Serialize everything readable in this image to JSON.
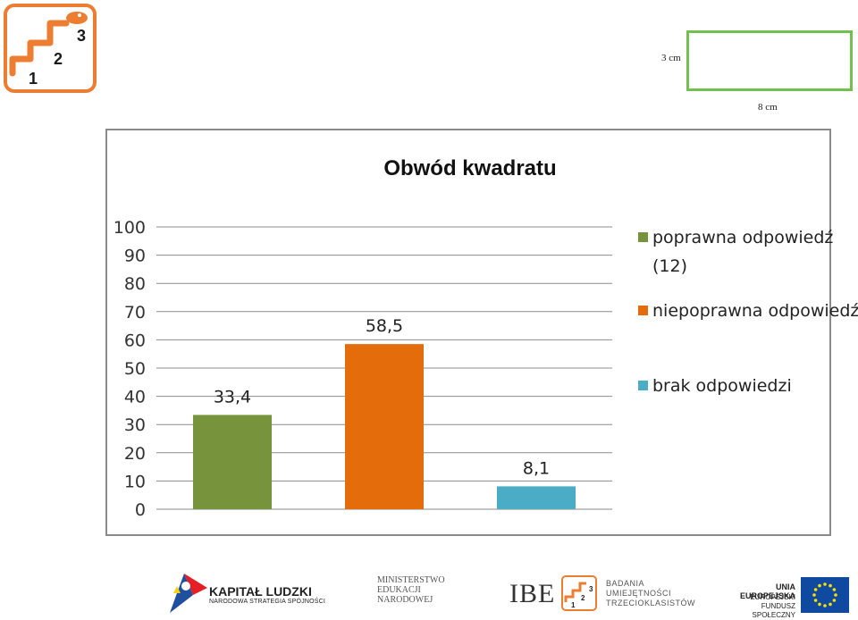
{
  "logo": {
    "numbers": [
      "1",
      "2",
      "3"
    ],
    "icon": "snake-stairs-logo",
    "color": "#ed7d31"
  },
  "figure": {
    "height_label": "3 cm",
    "width_label": "8 cm",
    "border_color": "#72c04f"
  },
  "chart_data": {
    "type": "bar",
    "title": "Obwód kwadratu",
    "categories": [
      "poprawna odpowiedź (12)",
      "niepoprawna odpowiedź",
      "brak odpowiedzi"
    ],
    "values": [
      33.4,
      58.5,
      8.1
    ],
    "value_labels": [
      "33,4",
      "58,5",
      "8,1"
    ],
    "colors": [
      "#77933c",
      "#e46c0a",
      "#4bacc6"
    ],
    "legend": [
      {
        "lines": [
          "poprawna odpowiedź",
          "(12)"
        ]
      },
      {
        "lines": [
          "niepoprawna odpowiedź"
        ]
      },
      {
        "lines": [
          "brak odpowiedzi"
        ]
      }
    ],
    "ylim": [
      0,
      100
    ],
    "yticks": [
      0,
      10,
      20,
      30,
      40,
      50,
      60,
      70,
      80,
      90,
      100
    ],
    "grid": true,
    "legend_position": "right"
  },
  "footer": {
    "kapital": {
      "title": "KAPITAŁ LUDZKI",
      "subtitle": "NARODOWA STRATEGIA SPÓJNOŚCI"
    },
    "ministerstwo": {
      "lines": [
        "MINISTERSTWO",
        "EDUKACJI",
        "NARODOWEJ"
      ]
    },
    "ibe": {
      "name": "IBE",
      "lines": [
        "BADANIA",
        "UMIEJĘTNOŚCI",
        "TRZECIOKLASISTÓW"
      ]
    },
    "ue": {
      "title": "UNIA EUROPEJSKA",
      "lines": [
        "EUROPEJSKI",
        "FUNDUSZ SPOŁECZNY"
      ]
    },
    "flag_colors": {
      "blue": "#0f4aa0",
      "star": "#ffde00"
    }
  }
}
